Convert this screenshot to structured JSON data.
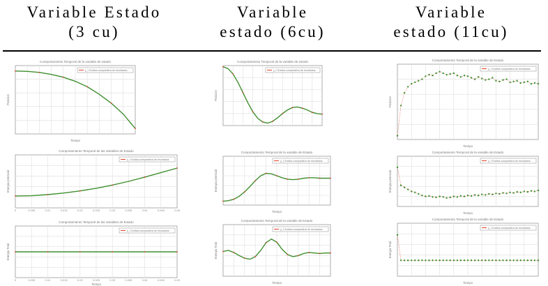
{
  "table": {
    "columns": [
      {
        "line1": "Variable Estado",
        "line2": "(3 cu)"
      },
      {
        "line1": "Variable",
        "line2": "estado (6cu)"
      },
      {
        "line1": "Variable",
        "line2": "estado (11cu)"
      }
    ]
  },
  "colors": {
    "exact": "#3f8f2f",
    "approx": "#e0402a",
    "frame": "#9a9a9a",
    "grid": "#dedede"
  },
  "chart_data": [
    {
      "id": "c0r0",
      "type": "line",
      "title": "Comportamiento Temporal de la variable de estado",
      "xlabel": "Tiempo",
      "ylabel": "Posicion",
      "legend": "y_t  Grafica comparativa de resultados",
      "x": [
        0,
        1,
        2,
        3,
        4,
        5,
        6,
        7,
        8,
        9,
        10
      ],
      "series": [
        {
          "values": [
            0.92,
            0.915,
            0.9,
            0.87,
            0.83,
            0.77,
            0.69,
            0.58,
            0.45,
            0.29,
            0.08
          ]
        }
      ],
      "ylim": [
        0,
        1
      ]
    },
    {
      "id": "c0r1",
      "type": "line",
      "title": "Comportamiento Temporal de las Variables de Estado",
      "xlabel": "",
      "ylabel": "Energia potencial",
      "legend": "y_t  Grafica comparativa de resultados",
      "x": [
        0,
        0.005,
        0.01,
        0.015,
        0.02,
        0.025,
        0.03,
        0.035,
        0.04,
        0.045,
        0.05
      ],
      "xticks": [
        "0",
        "0.005",
        "0.01",
        "0.015",
        "0.02",
        "0.025",
        "0.03",
        "0.035",
        "0.04",
        "0.045",
        "0.05"
      ],
      "series": [
        {
          "values": [
            0.09,
            0.092,
            0.1,
            0.112,
            0.128,
            0.148,
            0.172,
            0.2,
            0.232,
            0.266,
            0.3
          ]
        }
      ],
      "ylim": [
        0,
        0.4
      ]
    },
    {
      "id": "c0r2",
      "type": "line",
      "title": "Comportamiento Temporal de las Variables de Estado",
      "xlabel": "Tiempo",
      "ylabel": "Energia Total",
      "legend": "y_t  Grafica comparativa de resultados",
      "x": [
        0,
        0.005,
        0.01,
        0.015,
        0.02,
        0.025,
        0.03,
        0.035,
        0.04,
        0.045,
        0.05
      ],
      "xticks": [
        "0",
        "0.005",
        "0.01",
        "0.015",
        "0.02",
        "0.025",
        "0.03",
        "0.035",
        "0.04",
        "0.045",
        "0.05"
      ],
      "series": [
        {
          "values": [
            0.5,
            0.5,
            0.5,
            0.5,
            0.5,
            0.5,
            0.5,
            0.5,
            0.5,
            0.5,
            0.5
          ]
        }
      ],
      "ylim": [
        0,
        1
      ]
    },
    {
      "id": "c1r0",
      "type": "line",
      "title": "Comportamiento Temporal de la variable de estado",
      "xlabel": "",
      "ylabel": "Posicion",
      "legend": "y_t  Grafica comparativa de resultados",
      "x": [
        0,
        0.25,
        0.5,
        0.75,
        1,
        1.25,
        1.5,
        1.75,
        2,
        2.25,
        2.5,
        2.75,
        3,
        3.25,
        3.5,
        3.75,
        4,
        4.25,
        4.5,
        4.75,
        5
      ],
      "series": [
        {
          "values": [
            0.98,
            0.95,
            0.86,
            0.72,
            0.55,
            0.38,
            0.23,
            0.12,
            0.06,
            0.04,
            0.07,
            0.13,
            0.2,
            0.26,
            0.3,
            0.31,
            0.29,
            0.26,
            0.22,
            0.2,
            0.19
          ]
        }
      ],
      "ylim": [
        0,
        1
      ]
    },
    {
      "id": "c1r1",
      "type": "line",
      "title": "Comportamiento Temporal de la variable de Estado",
      "xlabel": "Tiempo",
      "ylabel": "Energia potencial",
      "legend": "y_t  Grafica comparativa de resultados",
      "x": [
        0,
        0.25,
        0.5,
        0.75,
        1,
        1.25,
        1.5,
        1.75,
        2,
        2.25,
        2.5,
        2.75,
        3,
        3.25,
        3.5,
        3.75,
        4,
        4.25,
        4.5,
        4.75,
        5
      ],
      "series": [
        {
          "values": [
            0.08,
            0.09,
            0.12,
            0.18,
            0.27,
            0.38,
            0.5,
            0.6,
            0.65,
            0.64,
            0.6,
            0.56,
            0.53,
            0.52,
            0.53,
            0.55,
            0.56,
            0.56,
            0.55,
            0.55,
            0.55
          ]
        }
      ],
      "ylim": [
        0,
        1
      ]
    },
    {
      "id": "c1r2",
      "type": "line",
      "title": "Comportamiento Temporal de la variable de Estado",
      "xlabel": "Tiempo",
      "ylabel": "Energia Total",
      "legend": "y_t  Grafica comparativa de resultados",
      "x": [
        0,
        0.25,
        0.5,
        0.75,
        1,
        1.25,
        1.5,
        1.75,
        2,
        2.25,
        2.5,
        2.75,
        3,
        3.25,
        3.5,
        3.75,
        4,
        4.25,
        4.5,
        4.75,
        5
      ],
      "series": [
        {
          "values": [
            0.48,
            0.5,
            0.46,
            0.4,
            0.35,
            0.33,
            0.38,
            0.5,
            0.65,
            0.72,
            0.66,
            0.52,
            0.42,
            0.38,
            0.4,
            0.44,
            0.46,
            0.45,
            0.44,
            0.45,
            0.45
          ]
        }
      ],
      "ylim": [
        0,
        1
      ]
    },
    {
      "id": "c2r0",
      "type": "scatter",
      "title": "Comportamiento Temporal de la variable de Estado",
      "xlabel": "Tiempo",
      "ylabel": "Posicion",
      "legend": "y_t  Grafica comparativa de resultados",
      "x": [
        0,
        0.5,
        1,
        1.5,
        2,
        2.5,
        3,
        3.5,
        4,
        4.5,
        5,
        5.5,
        6,
        6.5,
        7,
        7.5,
        8,
        8.5,
        9,
        9.5,
        10,
        10.5,
        11,
        11.5,
        12,
        12.5,
        13,
        13.5,
        14,
        14.5,
        15,
        15.5,
        16,
        16.5,
        17,
        17.5,
        18,
        18.5,
        19,
        19.5,
        20
      ],
      "series": [
        {
          "values": [
            0.05,
            0.45,
            0.62,
            0.7,
            0.74,
            0.76,
            0.78,
            0.8,
            0.84,
            0.86,
            0.85,
            0.88,
            0.9,
            0.88,
            0.86,
            0.87,
            0.88,
            0.85,
            0.83,
            0.85,
            0.84,
            0.82,
            0.8,
            0.83,
            0.81,
            0.79,
            0.8,
            0.82,
            0.78,
            0.77,
            0.79,
            0.8,
            0.76,
            0.77,
            0.78,
            0.75,
            0.76,
            0.77,
            0.74,
            0.75,
            0.74
          ]
        }
      ],
      "ylim": [
        0,
        1
      ]
    },
    {
      "id": "c2r1",
      "type": "scatter",
      "title": "Comportamiento Temporal de la variable de Estado",
      "xlabel": "Tiempo",
      "ylabel": "Energia potencial",
      "legend": "y_t  Grafica comparativa de resultados",
      "x": [
        0,
        0.5,
        1,
        1.5,
        2,
        2.5,
        3,
        3.5,
        4,
        4.5,
        5,
        5.5,
        6,
        6.5,
        7,
        7.5,
        8,
        8.5,
        9,
        9.5,
        10,
        10.5,
        11,
        11.5,
        12,
        12.5,
        13,
        13.5,
        14,
        14.5,
        15,
        15.5,
        16,
        16.5,
        17,
        17.5,
        18,
        18.5,
        19,
        19.5,
        20
      ],
      "series": [
        {
          "values": [
            0.78,
            0.42,
            0.38,
            0.34,
            0.3,
            0.28,
            0.25,
            0.22,
            0.2,
            0.21,
            0.19,
            0.18,
            0.2,
            0.19,
            0.17,
            0.18,
            0.2,
            0.19,
            0.21,
            0.2,
            0.22,
            0.21,
            0.23,
            0.22,
            0.24,
            0.23,
            0.25,
            0.24,
            0.26,
            0.25,
            0.27,
            0.26,
            0.28,
            0.27,
            0.29,
            0.28,
            0.3,
            0.29,
            0.31,
            0.3,
            0.32
          ]
        }
      ],
      "ylim": [
        0,
        1
      ]
    },
    {
      "id": "c2r2",
      "type": "scatter",
      "title": "Comportamiento Temporal de la variable de Estado",
      "xlabel": "Tiempo",
      "ylabel": "Energia Total",
      "legend": "y_t  Grafica comparativa de resultados",
      "x": [
        0,
        0.5,
        1,
        1.5,
        2,
        2.5,
        3,
        3.5,
        4,
        4.5,
        5,
        5.5,
        6,
        6.5,
        7,
        7.5,
        8,
        8.5,
        9,
        9.5,
        10,
        10.5,
        11,
        11.5,
        12,
        12.5,
        13,
        13.5,
        14,
        14.5,
        15,
        15.5,
        16,
        16.5,
        17,
        17.5,
        18,
        18.5,
        19,
        19.5,
        20
      ],
      "series": [
        {
          "values": [
            0.78,
            0.3,
            0.3,
            0.3,
            0.3,
            0.3,
            0.3,
            0.3,
            0.3,
            0.3,
            0.3,
            0.3,
            0.3,
            0.3,
            0.3,
            0.3,
            0.3,
            0.3,
            0.3,
            0.3,
            0.3,
            0.3,
            0.3,
            0.3,
            0.3,
            0.3,
            0.3,
            0.3,
            0.3,
            0.3,
            0.3,
            0.3,
            0.3,
            0.3,
            0.3,
            0.3,
            0.3,
            0.3,
            0.3,
            0.3,
            0.3
          ]
        }
      ],
      "ylim": [
        0,
        1
      ]
    }
  ]
}
